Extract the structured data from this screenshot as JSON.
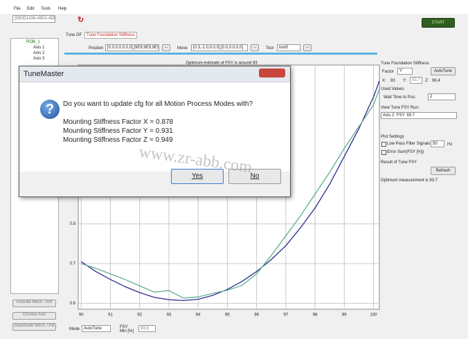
{
  "menu": [
    "File",
    "Edit",
    "Tools",
    "Help"
  ],
  "toolbar": {
    "id_field": "{5B3D1436-48EA-4DFF",
    "start": "START"
  },
  "tree": {
    "robot": "ROB_1",
    "axes": [
      "Axis 1",
      "Axis 2",
      "Axis 3"
    ]
  },
  "left_buttons": [
    "Activate Mech. Unit",
    "Choose Axis",
    "Deactivate Mech. Unit"
  ],
  "tabs": [
    "Tune DF",
    "Tune Foundation Stiffness"
  ],
  "position_row": {
    "position_label": "Position",
    "position_value": "[0.0,0.0,0.0,0],[9E9,9E9,9E9,9E9",
    "browse": "...",
    "move_label": "Move",
    "move_value": "[0.3,-1.0,0.0,0],[0.0,0.0,0.0]",
    "tool_label": "Tool",
    "tool_value": "tool0"
  },
  "chart_data": {
    "type": "line",
    "title": "Optimum estimate of FSY is around 93",
    "x": [
      90,
      90.5,
      91,
      91.5,
      92,
      92.5,
      93,
      93.5,
      94,
      94.5,
      95,
      95.5,
      96,
      96.5,
      97,
      97.5,
      98,
      98.5,
      99,
      99.5,
      100,
      100.2
    ],
    "series": [
      {
        "color": "#2a2a8c",
        "values": [
          0.705,
          0.68,
          0.66,
          0.642,
          0.627,
          0.615,
          0.609,
          0.607,
          0.61,
          0.62,
          0.635,
          0.655,
          0.68,
          0.71,
          0.745,
          0.79,
          0.84,
          0.9,
          0.97,
          1.04,
          1.12,
          1.16
        ]
      },
      {
        "color": "#5fae8e",
        "values": [
          0.7,
          0.688,
          0.674,
          0.66,
          0.644,
          0.628,
          0.632,
          0.613,
          0.616,
          0.625,
          0.633,
          0.645,
          0.674,
          0.72,
          0.77,
          0.82,
          0.875,
          0.93,
          0.99,
          1.045,
          1.1,
          1.14
        ]
      }
    ],
    "xlim": [
      89.9,
      100.2
    ],
    "ylim": [
      0.585,
      1.2
    ],
    "xticks": [
      90,
      91,
      92,
      93,
      94,
      95,
      96,
      97,
      98,
      99,
      100
    ],
    "yticks": [
      0.6,
      0.7,
      0.8
    ],
    "grid": true
  },
  "bottom": {
    "mode_label": "Mode",
    "mode_value": "AutoTune",
    "fsy_label": "FSY Min [%]",
    "fsy_value": "93.3"
  },
  "right_panel": {
    "title": "Tune Foundation Stiffness",
    "factor_label": "Factor",
    "factor_value": "Y",
    "autotune": "AutoTune",
    "x_label": "X:",
    "x_value": "93",
    "y_label": "Y:",
    "y_value": "93.7",
    "z_label": "Z:",
    "z_value": "96.4",
    "used_values": "Used Values",
    "wait_label": "Wait Time In Pos:",
    "wait_value": "2",
    "view_label": "View Tune FSY Run:",
    "view_value": "Axis 2: FSY: 93.7",
    "plot_settings": "Plot Settings",
    "lowpass": "Low Pass Filter Signals",
    "lowpass_value": "50",
    "hz": "Hz",
    "error_sum": "Error Sum(FSY [%])",
    "result_label": "Result of Tune FSY",
    "refresh": "Refresh",
    "optimum": "Optimum measurement is 93.7"
  },
  "dialog": {
    "title": "TuneMaster",
    "question": "Do you want to update cfg for all Motion Process Modes with?",
    "lines": [
      "Mounting Stiffness Factor X = 0.878",
      "Mounting Stiffness Factor Y = 0.931",
      "Mounting Stiffness Factor Z = 0.949"
    ],
    "yes": "Yes",
    "no": "No"
  },
  "watermark": "www.zr-abb.com"
}
